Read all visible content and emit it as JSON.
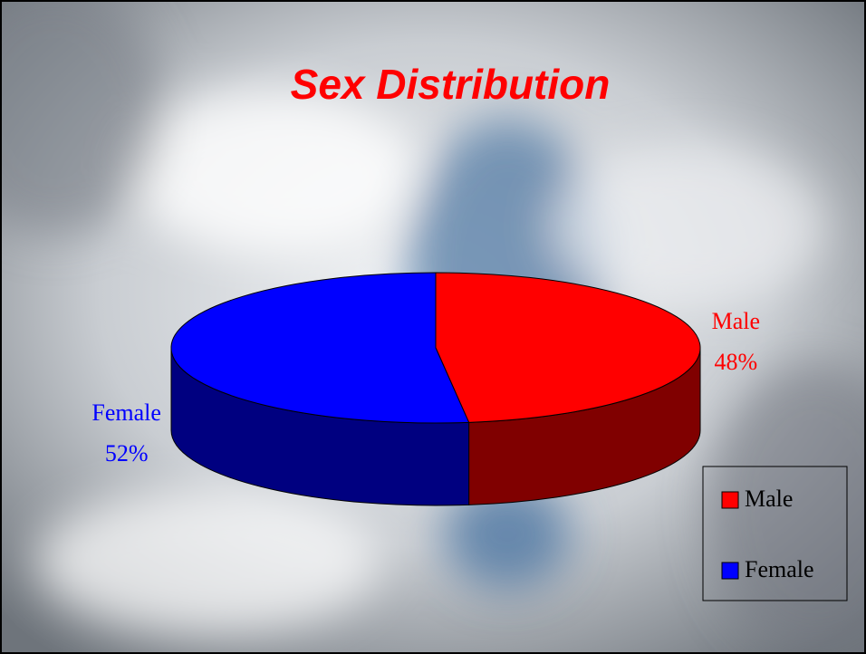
{
  "chart_data": {
    "type": "pie",
    "title": "Sex Distribution",
    "categories": [
      "Male",
      "Female"
    ],
    "values": [
      48,
      52
    ],
    "value_labels": [
      "48%",
      "52%"
    ],
    "colors": [
      "#ff0000",
      "#0000ff"
    ],
    "legend": "bottom-right"
  }
}
